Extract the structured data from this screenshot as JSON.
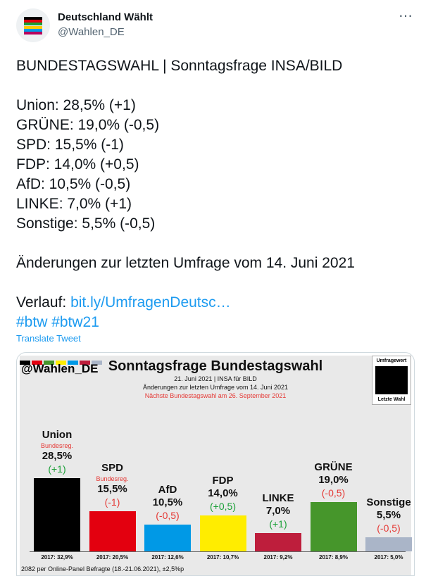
{
  "account": {
    "display_name": "Deutschland Wählt",
    "handle": "@Wahlen_DE",
    "more_icon": "⋯",
    "avatar_colors": [
      "#000000",
      "#e3000f",
      "#1aa037",
      "#ffcc00",
      "#0099e6",
      "#b7005c"
    ]
  },
  "tweet": {
    "headline": "BUNDESTAGSWAHL | Sonntagsfrage INSA/BILD",
    "results": [
      "Union: 28,5% (+1)",
      "GRÜNE: 19,0% (-0,5)",
      "SPD: 15,5% (-1)",
      "FDP: 14,0% (+0,5)",
      "AfD: 10,5% (-0,5)",
      "LINKE: 7,0% (+1)",
      "Sonstige: 5,5% (-0,5)"
    ],
    "changes_note": "Änderungen zur letzten Umfrage vom 14. Juni 2021",
    "verlauf_label": "Verlauf: ",
    "verlauf_link": "bit.ly/UmfragenDeutsc…",
    "hashtags": "#btw #btw21",
    "translate": "Translate Tweet"
  },
  "chart_data": {
    "type": "bar",
    "brand": "@Wahlen_DE",
    "title": "Sonntagsfrage Bundestagswahl",
    "subtitle_date": "21. Juni 2021 | INSA für BILD",
    "subtitle_changes": "Änderungen zur letzten Umfrage vom 14. Juni 2021",
    "subtitle_next": "Nächste Bundestagswahl am 26. September 2021",
    "legend_top": "Umfragewert",
    "legend_bottom": "Letzte Wahl",
    "footer": "2082 per Online-Panel Befragte (18.-21.06.2021), ±2,5%p",
    "ylim": [
      0,
      30
    ],
    "categories": [
      "Union",
      "SPD",
      "AfD",
      "FDP",
      "LINKE",
      "GRÜNE",
      "Sonstige"
    ],
    "values": [
      28.5,
      15.5,
      10.5,
      14.0,
      7.0,
      19.0,
      5.5
    ],
    "value_labels": [
      "28,5%",
      "15,5%",
      "10,5%",
      "14,0%",
      "7,0%",
      "19,0%",
      "5,5%"
    ],
    "changes": [
      "(+1)",
      "(-1)",
      "(-0,5)",
      "(+0,5)",
      "(+1)",
      "(-0,5)",
      "(-0,5)"
    ],
    "change_colors": [
      "#1aa037",
      "#e53935",
      "#e53935",
      "#1aa037",
      "#1aa037",
      "#e53935",
      "#e53935"
    ],
    "notes": [
      "Bundesreg.",
      "Bundesreg.",
      "",
      "",
      "",
      "",
      ""
    ],
    "colors": [
      "#000000",
      "#e3000f",
      "#0099e6",
      "#ffed00",
      "#be1e3c",
      "#46962b",
      "#aab5c8"
    ],
    "previous_election": [
      "2017: 32,9%",
      "2017: 20,5%",
      "2017: 12,6%",
      "2017: 10,7%",
      "2017: 9,2%",
      "2017: 8,9%",
      "2017: 5,0%"
    ]
  }
}
